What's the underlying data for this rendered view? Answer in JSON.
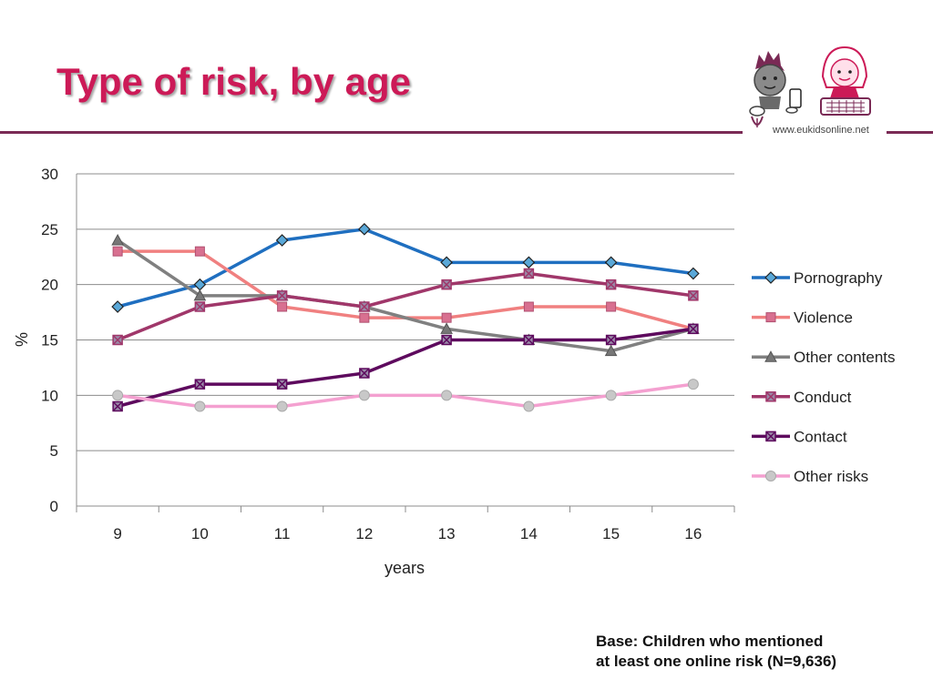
{
  "slide": {
    "title": "Type of risk, by age",
    "logo_url": "www.eukidsonline.net",
    "base_note": [
      "Base: Children who mentioned",
      "at least one online risk (N=9,636)"
    ]
  },
  "chart_data": {
    "type": "line",
    "title": "",
    "xlabel": "years",
    "ylabel": "%",
    "x": [
      9,
      10,
      11,
      12,
      13,
      14,
      15,
      16
    ],
    "ylim": [
      0,
      30
    ],
    "yticks": [
      0,
      5,
      10,
      15,
      20,
      25,
      30
    ],
    "grid": true,
    "legend": "right",
    "series": [
      {
        "name": "Pornography",
        "color": "#1f6fc0",
        "marker": "diamond",
        "values": [
          18,
          20,
          24,
          25,
          22,
          22,
          22,
          21
        ]
      },
      {
        "name": "Violence",
        "color": "#f08080",
        "marker": "square",
        "values": [
          23,
          23,
          18,
          17,
          17,
          18,
          18,
          16
        ]
      },
      {
        "name": "Other contents",
        "color": "#808080",
        "marker": "triangle",
        "values": [
          24,
          19,
          19,
          18,
          16,
          15,
          14,
          16
        ]
      },
      {
        "name": "Conduct",
        "color": "#a0376a",
        "marker": "x-square",
        "values": [
          15,
          18,
          19,
          18,
          20,
          21,
          20,
          19
        ]
      },
      {
        "name": "Contact",
        "color": "#5e0a5e",
        "marker": "x-square",
        "values": [
          9,
          11,
          11,
          12,
          15,
          15,
          15,
          16
        ]
      },
      {
        "name": "Other risks",
        "color": "#f4a0d0",
        "marker": "circle",
        "values": [
          10,
          9,
          9,
          10,
          10,
          9,
          10,
          11
        ]
      }
    ]
  }
}
